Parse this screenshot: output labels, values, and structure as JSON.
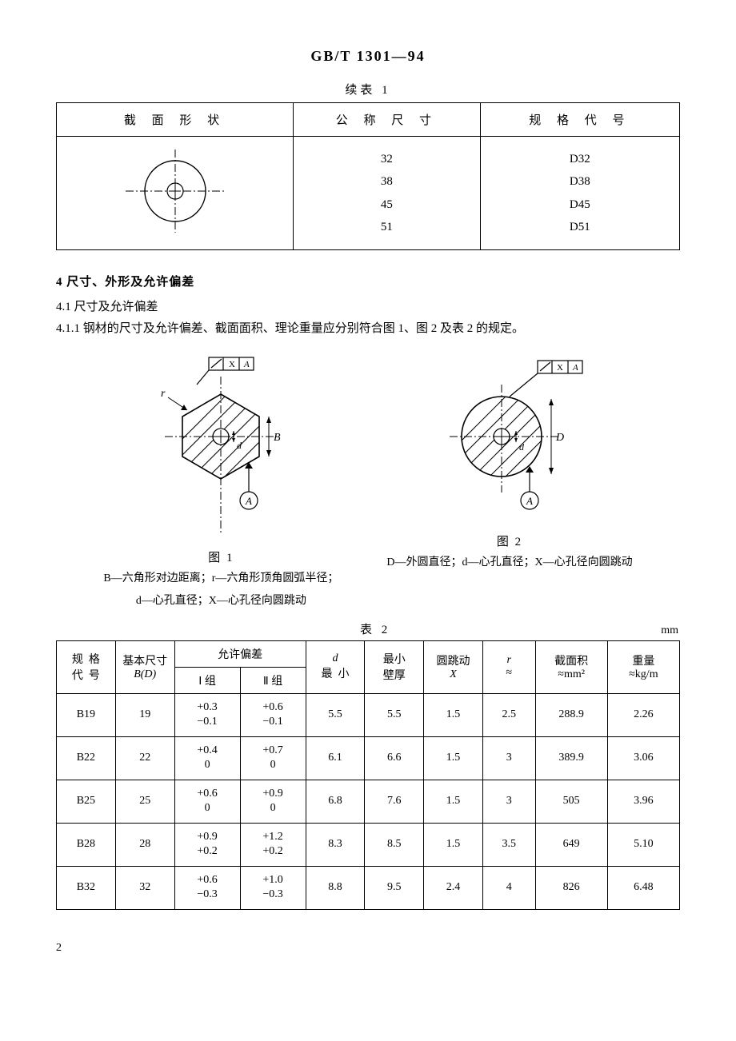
{
  "header": "GB/T 1301—94",
  "table1": {
    "caption": "续表 1",
    "columns": [
      "截 面 形 状",
      "公 称 尺 寸",
      "规 格 代 号"
    ],
    "sizes": [
      "32",
      "38",
      "45",
      "51"
    ],
    "codes": [
      "D32",
      "D38",
      "D45",
      "D51"
    ]
  },
  "section4": {
    "title": "4  尺寸、外形及允许偏差",
    "s41": "4.1  尺寸及允许偏差",
    "s411": "4.1.1  钢材的尺寸及允许偏差、截面面积、理论重量应分别符合图 1、图 2 及表 2 的规定。"
  },
  "fig1": {
    "cap": "图 1",
    "desc1": "B—六角形对边距离；r—六角形顶角圆弧半径；",
    "desc2": "d—心孔直径；X—心孔径向圆跳动"
  },
  "fig2": {
    "cap": "图 2",
    "desc": "D—外圆直径；d—心孔直径；X—心孔径向圆跳动"
  },
  "table2": {
    "caption": "表 2",
    "unit": "mm",
    "head": {
      "spec": "规  格\n代  号",
      "basic": "基本尺寸\nB(D)",
      "tol": "允许偏差",
      "g1": "Ⅰ 组",
      "g2": "Ⅱ 组",
      "d": "d\n最  小",
      "minwall": "最小\n壁厚",
      "runout": "圆跳动\nX",
      "r": "r\n≈",
      "area": "截面积\n≈mm²",
      "weight": "重量\n≈kg/m"
    },
    "rows": [
      {
        "code": "B19",
        "bd": "19",
        "t1u": "+0.3",
        "t1l": "−0.1",
        "t2u": "+0.6",
        "t2l": "−0.1",
        "d": "5.5",
        "wall": "5.5",
        "x": "1.5",
        "r": "2.5",
        "area": "288.9",
        "w": "2.26"
      },
      {
        "code": "B22",
        "bd": "22",
        "t1u": "+0.4",
        "t1l": "0",
        "t2u": "+0.7",
        "t2l": "0",
        "d": "6.1",
        "wall": "6.6",
        "x": "1.5",
        "r": "3",
        "area": "389.9",
        "w": "3.06"
      },
      {
        "code": "B25",
        "bd": "25",
        "t1u": "+0.6",
        "t1l": "0",
        "t2u": "+0.9",
        "t2l": "0",
        "d": "6.8",
        "wall": "7.6",
        "x": "1.5",
        "r": "3",
        "area": "505",
        "w": "3.96"
      },
      {
        "code": "B28",
        "bd": "28",
        "t1u": "+0.9",
        "t1l": "+0.2",
        "t2u": "+1.2",
        "t2l": "+0.2",
        "d": "8.3",
        "wall": "8.5",
        "x": "1.5",
        "r": "3.5",
        "area": "649",
        "w": "5.10"
      },
      {
        "code": "B32",
        "bd": "32",
        "t1u": "+0.6",
        "t1l": "−0.3",
        "t2u": "+1.0",
        "t2l": "−0.3",
        "d": "8.8",
        "wall": "9.5",
        "x": "2.4",
        "r": "4",
        "area": "826",
        "w": "6.48"
      }
    ]
  },
  "pagenum": "2"
}
